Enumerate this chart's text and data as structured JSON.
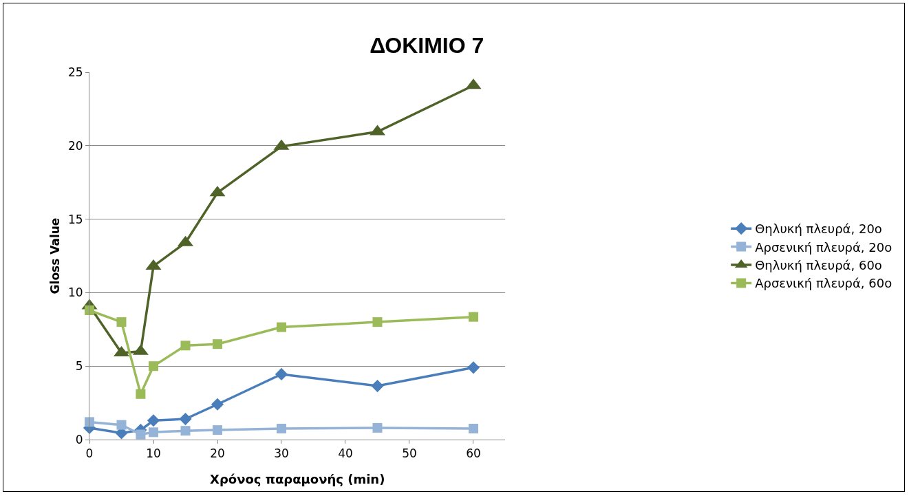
{
  "chart_data": {
    "type": "line",
    "title": "ΔΟΚΙΜΙΟ 7",
    "xlabel": "Χρόνος παραμονής (min)",
    "ylabel": "Gloss Value",
    "x": [
      0,
      5,
      8,
      10,
      15,
      20,
      30,
      45,
      60
    ],
    "series": [
      {
        "name": "Θηλυκή πλευρά, 20ο",
        "color": "#4a7ebb",
        "marker": "diamond",
        "values": [
          0.8,
          0.45,
          0.65,
          1.3,
          1.4,
          2.4,
          4.45,
          3.65,
          4.9
        ]
      },
      {
        "name": "Αρσενική πλευρά, 20ο",
        "color": "#95b3d7",
        "marker": "square",
        "values": [
          1.2,
          1.0,
          0.35,
          0.5,
          0.6,
          0.65,
          0.75,
          0.8,
          0.75
        ]
      },
      {
        "name": "Θηλυκή πλευρά, 60ο",
        "color": "#4f6228",
        "marker": "triangle",
        "values": [
          9.1,
          5.9,
          6.0,
          11.8,
          13.4,
          16.8,
          19.95,
          20.95,
          24.1
        ]
      },
      {
        "name": "Αρσενική πλευρά, 60ο",
        "color": "#9bbb59",
        "marker": "square",
        "values": [
          8.8,
          8.0,
          3.1,
          5.0,
          6.4,
          6.5,
          7.65,
          8.0,
          8.35
        ]
      }
    ],
    "xlim": [
      0,
      65
    ],
    "xticks": [
      0,
      10,
      20,
      30,
      40,
      50,
      60
    ],
    "ylim": [
      0,
      25
    ],
    "yticks": [
      0,
      5,
      10,
      15,
      20,
      25
    ],
    "grid": "y",
    "legend": "right",
    "line_style": "solid"
  }
}
